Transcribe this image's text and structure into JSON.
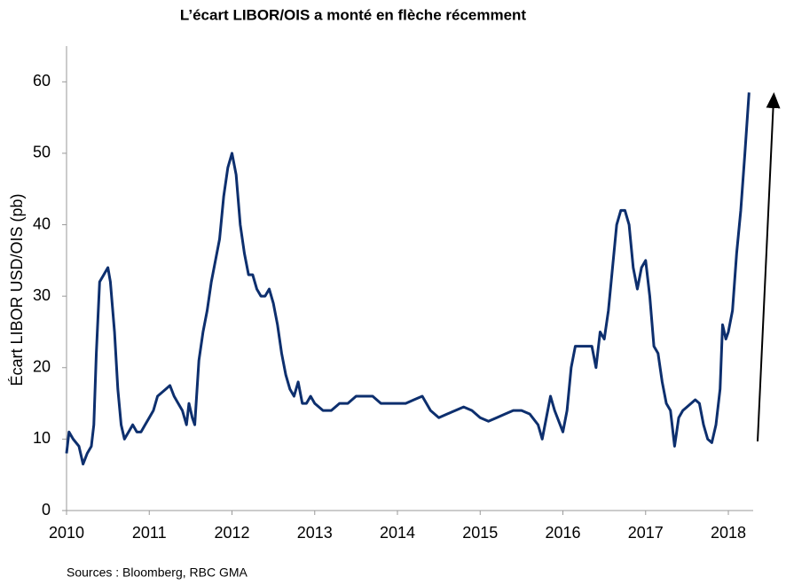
{
  "chart_data": {
    "type": "line",
    "title": "L’écart LIBOR/OIS a monté en flèche récemment",
    "y_label": "Écart LIBOR USD/OIS (pb)",
    "source": "Sources : Bloomberg, RBC GMA",
    "color": "#0d2f6e",
    "xlim": [
      2010,
      2018.3
    ],
    "xticks": [
      2010,
      2011,
      2012,
      2013,
      2014,
      2015,
      2016,
      2017,
      2018
    ],
    "ylim": [
      0,
      65
    ],
    "yticks": [
      0,
      10,
      20,
      30,
      40,
      50,
      60
    ],
    "x": [
      2010.0,
      2010.03,
      2010.08,
      2010.15,
      2010.2,
      2010.25,
      2010.3,
      2010.33,
      2010.36,
      2010.4,
      2010.45,
      2010.5,
      2010.53,
      2010.58,
      2010.62,
      2010.66,
      2010.7,
      2010.75,
      2010.8,
      2010.85,
      2010.9,
      2010.95,
      2011.0,
      2011.05,
      2011.1,
      2011.2,
      2011.25,
      2011.3,
      2011.35,
      2011.4,
      2011.45,
      2011.48,
      2011.52,
      2011.55,
      2011.6,
      2011.65,
      2011.7,
      2011.75,
      2011.8,
      2011.85,
      2011.9,
      2011.95,
      2012.0,
      2012.05,
      2012.1,
      2012.15,
      2012.2,
      2012.25,
      2012.3,
      2012.35,
      2012.4,
      2012.45,
      2012.5,
      2012.55,
      2012.6,
      2012.65,
      2012.7,
      2012.75,
      2012.8,
      2012.85,
      2012.9,
      2012.95,
      2013.0,
      2013.1,
      2013.2,
      2013.3,
      2013.4,
      2013.5,
      2013.6,
      2013.7,
      2013.8,
      2013.9,
      2014.0,
      2014.1,
      2014.2,
      2014.3,
      2014.4,
      2014.5,
      2014.6,
      2014.7,
      2014.8,
      2014.9,
      2015.0,
      2015.1,
      2015.2,
      2015.3,
      2015.4,
      2015.5,
      2015.6,
      2015.7,
      2015.75,
      2015.8,
      2015.85,
      2015.9,
      2016.0,
      2016.05,
      2016.1,
      2016.15,
      2016.25,
      2016.35,
      2016.4,
      2016.45,
      2016.5,
      2016.55,
      2016.6,
      2016.65,
      2016.7,
      2016.75,
      2016.8,
      2016.85,
      2016.9,
      2016.95,
      2017.0,
      2017.05,
      2017.1,
      2017.15,
      2017.2,
      2017.25,
      2017.3,
      2017.35,
      2017.4,
      2017.45,
      2017.5,
      2017.6,
      2017.65,
      2017.7,
      2017.75,
      2017.8,
      2017.85,
      2017.9,
      2017.93,
      2017.97,
      2018.0,
      2018.05,
      2018.1,
      2018.15,
      2018.2,
      2018.25
    ],
    "values": [
      8,
      11,
      10,
      9,
      6.5,
      8,
      9,
      12,
      22,
      32,
      33,
      34,
      32,
      25,
      17,
      12,
      10,
      11,
      12,
      11,
      11,
      12,
      13,
      14,
      16,
      17,
      17.5,
      16,
      15,
      14,
      12,
      15,
      13,
      12,
      21,
      25,
      28,
      32,
      35,
      38,
      44,
      48,
      50,
      47,
      40,
      36,
      33,
      33,
      31,
      30,
      30,
      31,
      29,
      26,
      22,
      19,
      17,
      16,
      18,
      15,
      15,
      16,
      15,
      14,
      14,
      15,
      15,
      16,
      16,
      16,
      15,
      15,
      15,
      15,
      15.5,
      16,
      14,
      13,
      13.5,
      14,
      14.5,
      14,
      13,
      12.5,
      13,
      13.5,
      14,
      14,
      13.5,
      12,
      10,
      13,
      16,
      14,
      11,
      14,
      20,
      23,
      23,
      23,
      20,
      25,
      24,
      28,
      34,
      40,
      42,
      42,
      40,
      34,
      31,
      34,
      35,
      30,
      23,
      22,
      18,
      15,
      14,
      9,
      13,
      14,
      14.5,
      15.5,
      15,
      12,
      10,
      9.5,
      12,
      17,
      26,
      24,
      25,
      28,
      36,
      42,
      50,
      58.5
    ]
  }
}
